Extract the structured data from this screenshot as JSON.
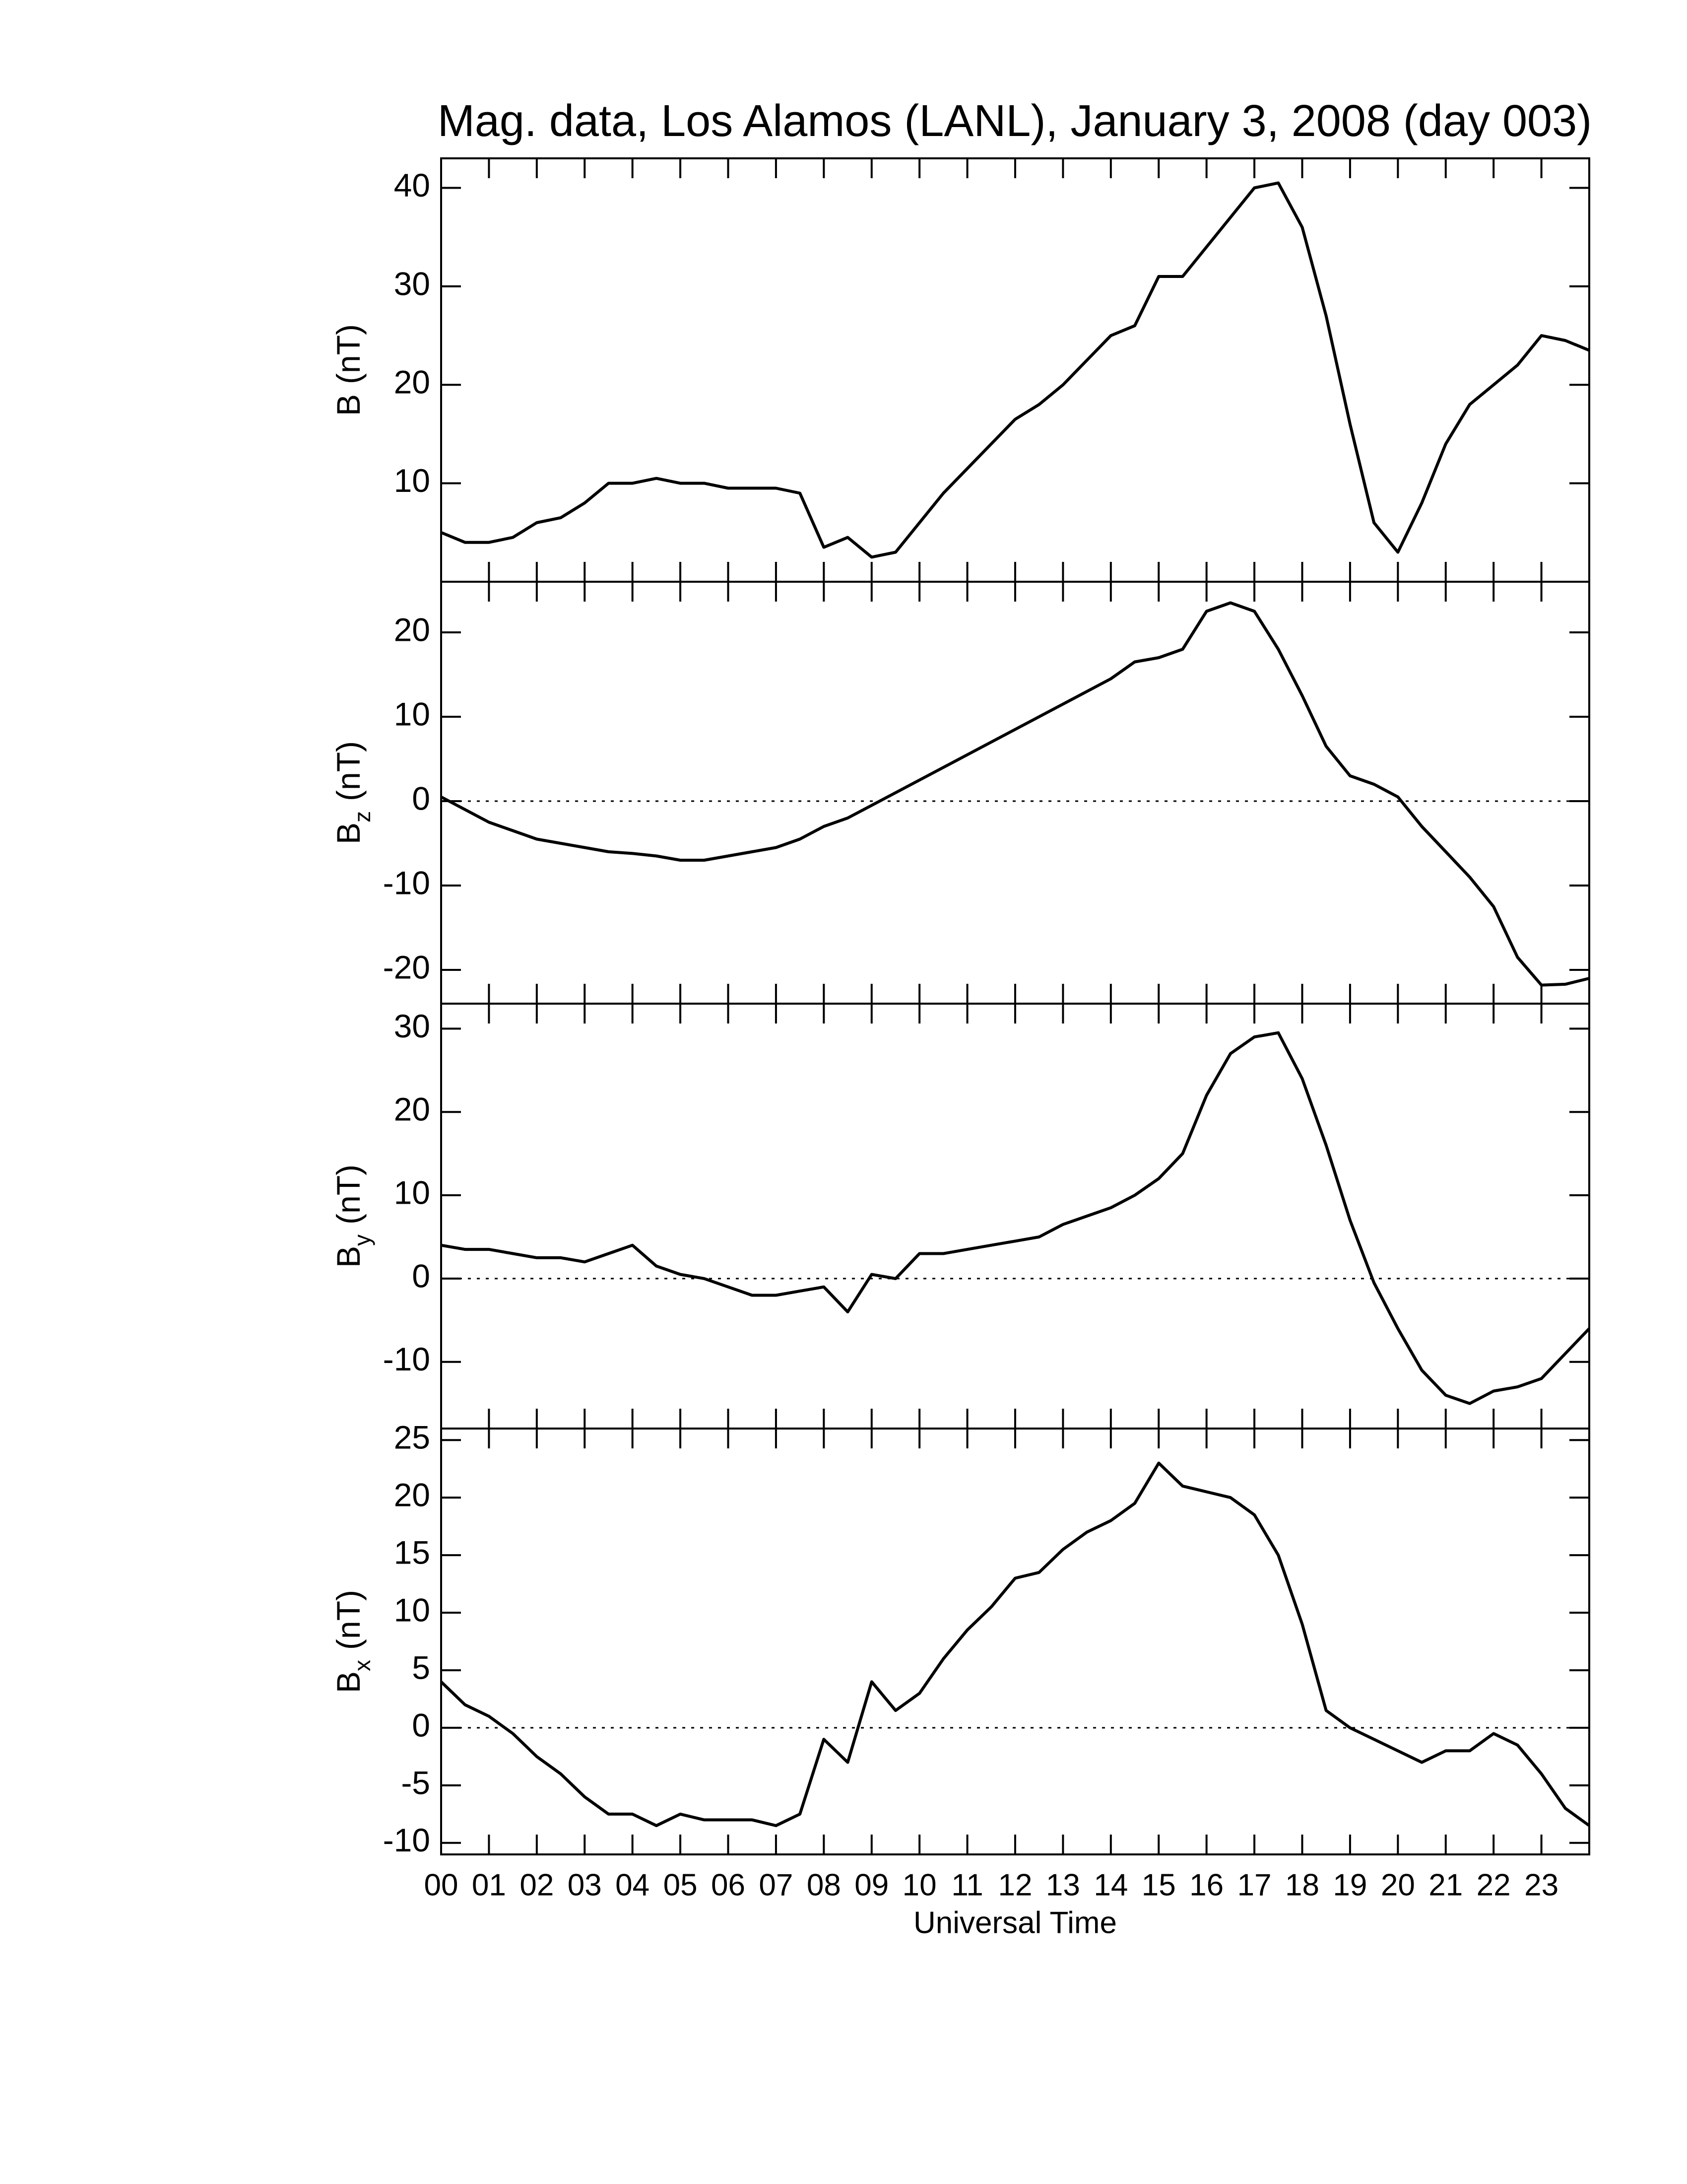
{
  "chart_data": [
    {
      "type": "line",
      "title": "Mag. data, Los Alamos (LANL), January 3, 2008 (day 003)",
      "ylabel": {
        "symbol": "B",
        "unit": "(nT)"
      },
      "color": "#000000",
      "x": [
        0,
        0.5,
        1,
        1.5,
        2,
        2.5,
        3,
        3.5,
        4,
        4.5,
        5,
        5.5,
        6,
        6.5,
        7,
        7.5,
        8,
        8.5,
        9,
        9.5,
        10,
        10.5,
        11,
        11.5,
        12,
        12.5,
        13,
        13.5,
        14,
        14.5,
        15,
        15.5,
        16,
        16.5,
        17,
        17.5,
        18,
        18.5,
        19,
        19.5,
        20,
        20.5,
        21,
        21.5,
        22,
        22.5,
        23,
        23.5,
        24
      ],
      "values": [
        5,
        4,
        4,
        4.5,
        6,
        6.5,
        8,
        10,
        10,
        10.5,
        10,
        10,
        9.5,
        9.5,
        9.5,
        9,
        3.5,
        4.5,
        2.5,
        3,
        6,
        9,
        11.5,
        14,
        16.5,
        18,
        20,
        22.5,
        25,
        26,
        31,
        31,
        34,
        37,
        40,
        40.5,
        36,
        27,
        16,
        6,
        3,
        8,
        14,
        18,
        20,
        22,
        25,
        24.5,
        23.5
      ],
      "xlim": [
        0,
        24
      ],
      "ylim": [
        0,
        43
      ],
      "yticks": [
        10,
        20,
        30,
        40
      ]
    },
    {
      "type": "line",
      "ylabel": {
        "symbol": "B",
        "subscript": "z",
        "unit": "(nT)"
      },
      "color": "#000000",
      "hline": 0,
      "x": [
        0,
        0.5,
        1,
        1.5,
        2,
        2.5,
        3,
        3.5,
        4,
        4.5,
        5,
        5.5,
        6,
        6.5,
        7,
        7.5,
        8,
        8.5,
        9,
        9.5,
        10,
        10.5,
        11,
        11.5,
        12,
        12.5,
        13,
        13.5,
        14,
        14.5,
        15,
        15.5,
        16,
        16.5,
        17,
        17.5,
        18,
        18.5,
        19,
        19.5,
        20,
        20.5,
        21,
        21.5,
        22,
        22.5,
        23,
        23.5,
        24
      ],
      "values": [
        0.5,
        -1,
        -2.5,
        -3.5,
        -4.5,
        -5,
        -5.5,
        -6,
        -6.2,
        -6.5,
        -7,
        -7,
        -6.5,
        -6,
        -5.5,
        -4.5,
        -3,
        -2,
        -0.5,
        1,
        2.5,
        4,
        5.5,
        7,
        8.5,
        10,
        11.5,
        13,
        14.5,
        16.5,
        17,
        18,
        22.5,
        23.5,
        22.5,
        18,
        12.5,
        6.5,
        3,
        2,
        0.5,
        -3,
        -6,
        -9,
        -12.5,
        -18.5,
        -21.8,
        -21.7,
        -21
      ],
      "xlim": [
        0,
        24
      ],
      "ylim": [
        -24,
        26
      ],
      "yticks": [
        -20,
        -10,
        0,
        10,
        20
      ]
    },
    {
      "type": "line",
      "ylabel": {
        "symbol": "B",
        "subscript": "y",
        "unit": "(nT)"
      },
      "color": "#000000",
      "hline": 0,
      "x": [
        0,
        0.5,
        1,
        1.5,
        2,
        2.5,
        3,
        3.5,
        4,
        4.5,
        5,
        5.5,
        6,
        6.5,
        7,
        7.5,
        8,
        8.5,
        9,
        9.5,
        10,
        10.5,
        11,
        11.5,
        12,
        12.5,
        13,
        13.5,
        14,
        14.5,
        15,
        15.5,
        16,
        16.5,
        17,
        17.5,
        18,
        18.5,
        19,
        19.5,
        20,
        20.5,
        21,
        21.5,
        22,
        22.5,
        23,
        23.5,
        24
      ],
      "values": [
        4,
        3.5,
        3.5,
        3,
        2.5,
        2.5,
        2,
        3,
        4,
        1.5,
        0.5,
        0,
        -1,
        -2,
        -2,
        -1.5,
        -1,
        -4,
        0.5,
        0,
        3,
        3,
        3.5,
        4,
        4.5,
        5,
        6.5,
        7.5,
        8.5,
        10,
        12,
        15,
        22,
        27,
        29,
        29.5,
        24,
        16,
        7,
        -0.5,
        -6,
        -11,
        -14,
        -15,
        -13.5,
        -13,
        -12,
        -9,
        -6
      ],
      "xlim": [
        0,
        24
      ],
      "ylim": [
        -18,
        33
      ],
      "yticks": [
        -10,
        0,
        10,
        20,
        30
      ]
    },
    {
      "type": "line",
      "ylabel": {
        "symbol": "B",
        "subscript": "x",
        "unit": "(nT)"
      },
      "color": "#000000",
      "hline": 0,
      "xlabel": "Universal Time",
      "x": [
        0,
        0.5,
        1,
        1.5,
        2,
        2.5,
        3,
        3.5,
        4,
        4.5,
        5,
        5.5,
        6,
        6.5,
        7,
        7.5,
        8,
        8.5,
        9,
        9.5,
        10,
        10.5,
        11,
        11.5,
        12,
        12.5,
        13,
        13.5,
        14,
        14.5,
        15,
        15.5,
        16,
        16.5,
        17,
        17.5,
        18,
        18.5,
        19,
        19.5,
        20,
        20.5,
        21,
        21.5,
        22,
        22.5,
        23,
        23.5,
        24
      ],
      "values": [
        4,
        2,
        1,
        -0.5,
        -2.5,
        -4,
        -6,
        -7.5,
        -7.5,
        -8.5,
        -7.5,
        -8,
        -8,
        -8,
        -8.5,
        -7.5,
        -1,
        -3,
        4,
        1.5,
        3,
        6,
        8.5,
        10.5,
        13,
        13.5,
        15.5,
        17,
        18,
        19.5,
        23,
        21,
        20.5,
        20,
        18.5,
        15,
        9,
        1.5,
        0,
        -1,
        -2,
        -3,
        -2,
        -2,
        -0.5,
        -1.5,
        -4,
        -7,
        -8.5
      ],
      "xlim": [
        0,
        24
      ],
      "ylim": [
        -11,
        26
      ],
      "yticks": [
        -10,
        -5,
        0,
        5,
        10,
        15,
        20,
        25
      ],
      "xticks": [
        {
          "value": 0,
          "label": "00"
        },
        {
          "value": 1,
          "label": "01"
        },
        {
          "value": 2,
          "label": "02"
        },
        {
          "value": 3,
          "label": "03"
        },
        {
          "value": 4,
          "label": "04"
        },
        {
          "value": 5,
          "label": "05"
        },
        {
          "value": 6,
          "label": "06"
        },
        {
          "value": 7,
          "label": "07"
        },
        {
          "value": 8,
          "label": "08"
        },
        {
          "value": 9,
          "label": "09"
        },
        {
          "value": 10,
          "label": "10"
        },
        {
          "value": 11,
          "label": "11"
        },
        {
          "value": 12,
          "label": "12"
        },
        {
          "value": 13,
          "label": "13"
        },
        {
          "value": 14,
          "label": "14"
        },
        {
          "value": 15,
          "label": "15"
        },
        {
          "value": 16,
          "label": "16"
        },
        {
          "value": 17,
          "label": "17"
        },
        {
          "value": 18,
          "label": "18"
        },
        {
          "value": 19,
          "label": "19"
        },
        {
          "value": 20,
          "label": "20"
        },
        {
          "value": 21,
          "label": "21"
        },
        {
          "value": 22,
          "label": "22"
        },
        {
          "value": 23,
          "label": "23"
        }
      ]
    }
  ]
}
